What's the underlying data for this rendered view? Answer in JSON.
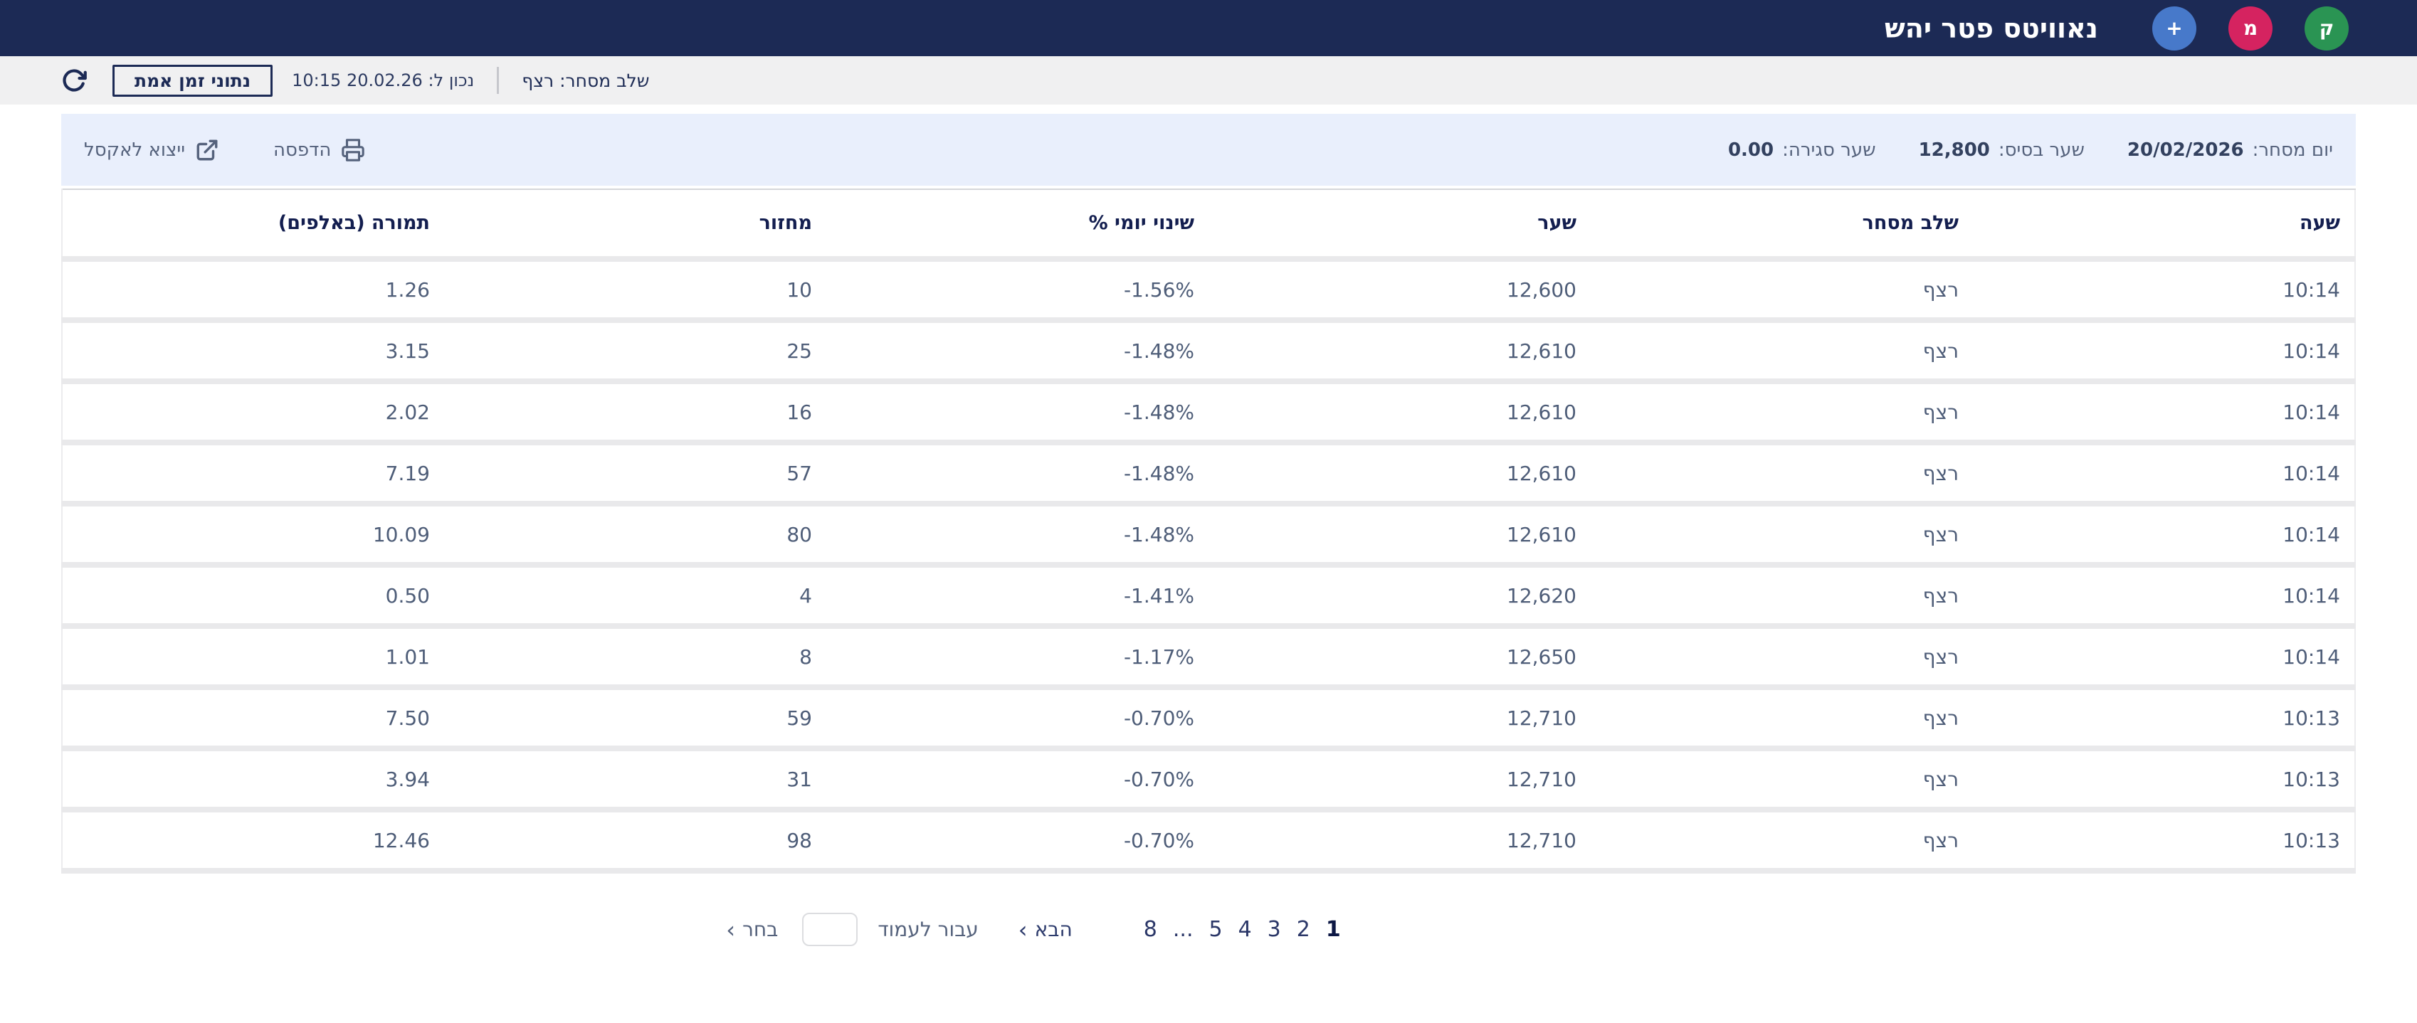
{
  "header": {
    "title": "נאוויטס פטר יהש",
    "buttons": [
      {
        "name": "circle-button-k",
        "label": "ק",
        "color": "#2a9453"
      },
      {
        "name": "circle-button-m",
        "label": "מ",
        "color": "#d52360"
      },
      {
        "name": "add-button",
        "label": "+",
        "color": "#4779ca"
      }
    ]
  },
  "toolbar": {
    "trading_stage": "שלב מסחר: רצף",
    "as_of": "נכון ל: 20.02.26 10:15",
    "realtime_button": "נתוני זמן אמת"
  },
  "infobar": {
    "stats": [
      {
        "label": "יום מסחר:",
        "value": "20/02/2026"
      },
      {
        "label": "שער בסיס:",
        "value": "12,800"
      },
      {
        "label": "שער סגירה:",
        "value": "0.00"
      }
    ],
    "actions": {
      "print": "הדפסה",
      "export_excel": "ייצוא לאקסל"
    }
  },
  "table": {
    "columns": [
      "שעה",
      "שלב מסחר",
      "שער",
      "שינוי יומי %",
      "מחזור",
      "תמורה (באלפים)"
    ],
    "rows": [
      {
        "time": "10:14",
        "stage": "רצף",
        "price": "12,600",
        "change_pct": "-1.56%",
        "volume": "10",
        "value_thousands": "1.26"
      },
      {
        "time": "10:14",
        "stage": "רצף",
        "price": "12,610",
        "change_pct": "-1.48%",
        "volume": "25",
        "value_thousands": "3.15"
      },
      {
        "time": "10:14",
        "stage": "רצף",
        "price": "12,610",
        "change_pct": "-1.48%",
        "volume": "16",
        "value_thousands": "2.02"
      },
      {
        "time": "10:14",
        "stage": "רצף",
        "price": "12,610",
        "change_pct": "-1.48%",
        "volume": "57",
        "value_thousands": "7.19"
      },
      {
        "time": "10:14",
        "stage": "רצף",
        "price": "12,610",
        "change_pct": "-1.48%",
        "volume": "80",
        "value_thousands": "10.09"
      },
      {
        "time": "10:14",
        "stage": "רצף",
        "price": "12,620",
        "change_pct": "-1.41%",
        "volume": "4",
        "value_thousands": "0.50"
      },
      {
        "time": "10:14",
        "stage": "רצף",
        "price": "12,650",
        "change_pct": "-1.17%",
        "volume": "8",
        "value_thousands": "1.01"
      },
      {
        "time": "10:13",
        "stage": "רצף",
        "price": "12,710",
        "change_pct": "-0.70%",
        "volume": "59",
        "value_thousands": "7.50"
      },
      {
        "time": "10:13",
        "stage": "רצף",
        "price": "12,710",
        "change_pct": "-0.70%",
        "volume": "31",
        "value_thousands": "3.94"
      },
      {
        "time": "10:13",
        "stage": "רצף",
        "price": "12,710",
        "change_pct": "-0.70%",
        "volume": "98",
        "value_thousands": "12.46"
      }
    ]
  },
  "pagination": {
    "pages": [
      "1",
      "2",
      "3",
      "4",
      "5",
      "...",
      "8"
    ],
    "current": "1",
    "next_label": "הבא",
    "goto_label": "עבור לעמוד",
    "choose_label": "בחר",
    "chevron": "‹",
    "input_value": ""
  }
}
